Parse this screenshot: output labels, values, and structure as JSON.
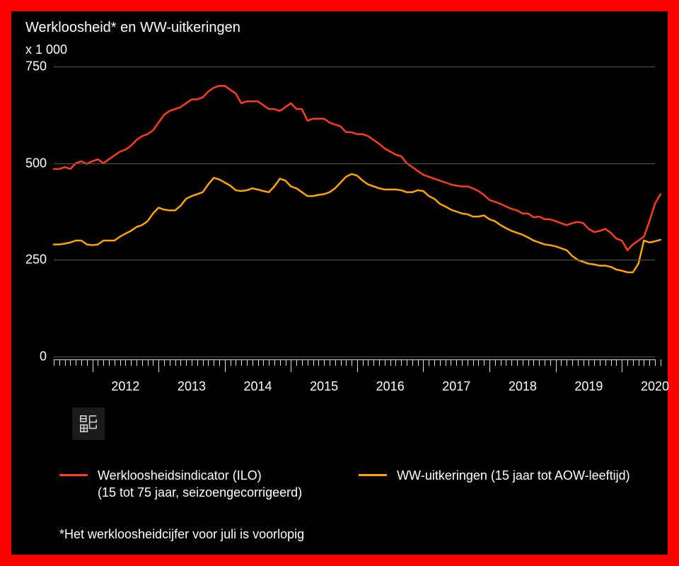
{
  "title": "Werkloosheid* en WW-uitkeringen",
  "y_unit_label": "x 1 000",
  "footnote": "*Het werkloosheidcijfer voor juli is voorlopig",
  "colors": {
    "background": "#000000",
    "frame": "#ff0000",
    "text": "#ffffff",
    "grid": "#555555",
    "tick": "#dddddd",
    "series1": "#ff3f1f",
    "series2": "#ffa400"
  },
  "y_axis": {
    "min": 0,
    "max": 750,
    "ticks": [
      0,
      250,
      500,
      750
    ]
  },
  "x_axis": {
    "start_year": 2011,
    "start_month": 6,
    "end_year": 2020,
    "end_month": 7,
    "year_labels": [
      2012,
      2013,
      2014,
      2015,
      2016,
      2017,
      2018,
      2019,
      2020
    ]
  },
  "legend": {
    "series1": {
      "label": "Werkloosheidsindicator (ILO)",
      "sub": "(15 tot 75 jaar, seizoengecorrigeerd)"
    },
    "series2": {
      "label": "WW-uitkeringen (15 jaar tot AOW-leeftijd)",
      "sub": ""
    }
  },
  "logo_name": "cbs-logo",
  "chart": {
    "type": "line",
    "line_width": 2.5,
    "series": [
      {
        "name": "Werkloosheidsindicator (ILO)",
        "color": "#ff3f1f",
        "values": [
          485,
          485,
          490,
          485,
          500,
          505,
          498,
          505,
          510,
          500,
          510,
          520,
          530,
          535,
          545,
          560,
          570,
          575,
          585,
          605,
          625,
          635,
          640,
          645,
          655,
          665,
          665,
          670,
          685,
          695,
          700,
          700,
          690,
          680,
          655,
          660,
          660,
          660,
          650,
          640,
          640,
          635,
          645,
          655,
          640,
          640,
          610,
          615,
          615,
          615,
          605,
          600,
          595,
          580,
          580,
          575,
          575,
          570,
          560,
          550,
          538,
          530,
          522,
          518,
          500,
          490,
          480,
          470,
          465,
          460,
          455,
          450,
          445,
          442,
          440,
          440,
          435,
          428,
          418,
          405,
          400,
          395,
          388,
          382,
          378,
          370,
          370,
          360,
          362,
          355,
          355,
          350,
          345,
          340,
          345,
          348,
          345,
          330,
          322,
          325,
          330,
          320,
          305,
          300,
          275,
          290,
          300,
          310,
          350,
          395,
          420
        ]
      },
      {
        "name": "WW-uitkeringen",
        "color": "#ffa400",
        "values": [
          290,
          290,
          292,
          295,
          300,
          300,
          290,
          288,
          290,
          300,
          300,
          300,
          310,
          318,
          325,
          335,
          340,
          350,
          370,
          385,
          380,
          378,
          378,
          390,
          408,
          415,
          420,
          425,
          445,
          462,
          458,
          450,
          442,
          430,
          428,
          430,
          435,
          432,
          428,
          425,
          440,
          460,
          455,
          440,
          435,
          425,
          415,
          415,
          418,
          420,
          425,
          435,
          450,
          465,
          472,
          468,
          455,
          445,
          440,
          435,
          432,
          432,
          432,
          430,
          425,
          425,
          430,
          428,
          415,
          408,
          395,
          388,
          380,
          375,
          370,
          368,
          362,
          362,
          365,
          355,
          350,
          340,
          332,
          325,
          320,
          315,
          308,
          300,
          295,
          290,
          288,
          285,
          280,
          275,
          260,
          250,
          245,
          240,
          238,
          235,
          235,
          232,
          225,
          222,
          218,
          218,
          240,
          300,
          295,
          298,
          302
        ]
      }
    ]
  }
}
